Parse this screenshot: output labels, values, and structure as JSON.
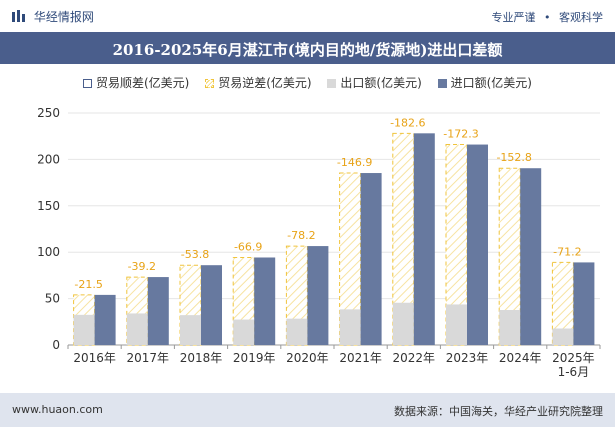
{
  "header": {
    "logo_text": "华经情报网",
    "right_text_1": "专业严谨",
    "right_text_2": "客观科学",
    "separator": "•"
  },
  "colors": {
    "title_band": "#4a5e8c",
    "import": "#67799f",
    "export": "#d9d9d9",
    "deficit_stroke": "#f0c43c",
    "footer_bg": "#dfe4ee"
  },
  "footer": {
    "left": "www.huaon.com",
    "right": "数据来源：中国海关，华经产业研究院整理"
  },
  "chart_data": {
    "type": "bar",
    "title": "2016-2025年6月湛江市(境内目的地/货源地)进出口差额",
    "legend": [
      {
        "key": "surplus",
        "label": "贸易顺差(亿美元)"
      },
      {
        "key": "deficit",
        "label": "贸易逆差(亿美元)"
      },
      {
        "key": "export",
        "label": "出口额(亿美元)"
      },
      {
        "key": "import",
        "label": "进口额(亿美元)"
      }
    ],
    "categories": [
      "2016年",
      "2017年",
      "2018年",
      "2019年",
      "2020年",
      "2021年",
      "2022年",
      "2023年",
      "2024年",
      "2025年\n1-6月"
    ],
    "series": [
      {
        "name": "出口额(亿美元)",
        "values": [
          32.5,
          34.0,
          32.2,
          27.4,
          28.4,
          38.4,
          45.5,
          43.7,
          37.7,
          17.8
        ]
      },
      {
        "name": "进口额(亿美元)",
        "values": [
          54.0,
          73.2,
          86.0,
          94.3,
          106.6,
          185.3,
          228.1,
          216.0,
          190.5,
          89.0
        ]
      },
      {
        "name": "贸易逆差(亿美元)",
        "values": [
          -21.5,
          -39.2,
          -53.8,
          -66.9,
          -78.2,
          -146.9,
          -182.6,
          -172.3,
          -152.8,
          -71.2
        ]
      }
    ],
    "deficit_labels": [
      "-21.5",
      "-39.2",
      "-53.8",
      "-66.9",
      "-78.2",
      "-146.9",
      "-182.6",
      "-172.3",
      "-152.8",
      "-71.2"
    ],
    "y_ticks": [
      "0",
      "50",
      "100",
      "150",
      "200",
      "250"
    ],
    "ylim": [
      0,
      250
    ],
    "grid": true,
    "legend_position": "top"
  }
}
